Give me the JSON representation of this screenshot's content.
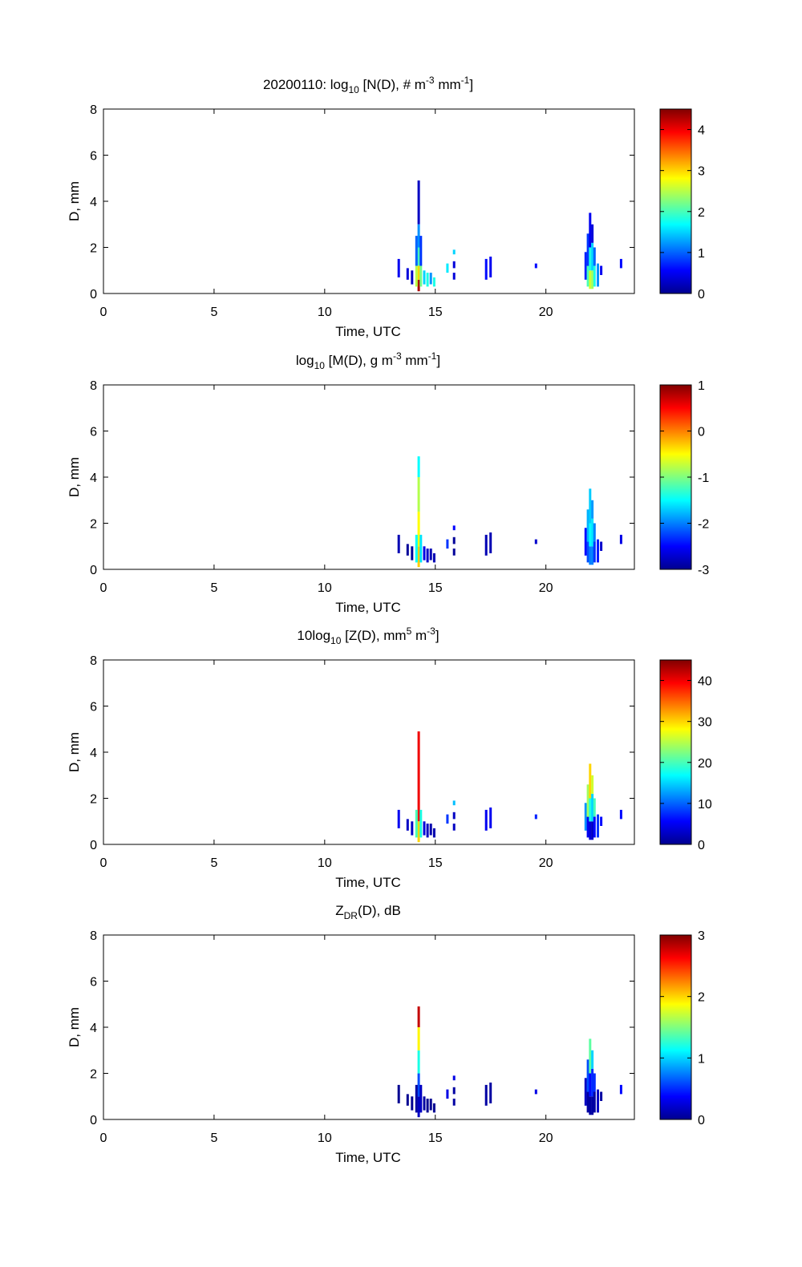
{
  "figure": {
    "date_prefix": "20200110: "
  },
  "colors": {
    "axis": "#000000",
    "background": "#ffffff"
  },
  "chart_data": [
    {
      "type": "heatmap",
      "title_parts": {
        "pre": "log",
        "sub": "10",
        "mid1": " [N(D), # m",
        "sup1": "-3",
        "mid2": " mm",
        "sup2": "-1",
        "post": "]"
      },
      "xlabel": "Time, UTC",
      "ylabel": "D, mm",
      "xlim": [
        0,
        24
      ],
      "ylim": [
        0,
        8
      ],
      "xticks": [
        "0",
        "5",
        "10",
        "15",
        "20"
      ],
      "yticks": [
        "0",
        "2",
        "4",
        "6",
        "8"
      ],
      "colorbar": {
        "range": [
          0,
          4.5
        ],
        "ticks": [
          "0",
          "1",
          "2",
          "3",
          "4"
        ]
      },
      "cells": [
        {
          "t": 14.25,
          "d0": 0.1,
          "d1": 0.6,
          "v": 4.3
        },
        {
          "t": 14.25,
          "d0": 0.6,
          "d1": 1.2,
          "v": 3.0
        },
        {
          "t": 14.25,
          "d0": 1.2,
          "d1": 2.0,
          "v": 2.0
        },
        {
          "t": 14.25,
          "d0": 2.0,
          "d1": 3.0,
          "v": 1.2
        },
        {
          "t": 14.25,
          "d0": 3.0,
          "d1": 4.9,
          "v": 0.3
        },
        {
          "t": 14.15,
          "d0": 0.3,
          "d1": 1.2,
          "v": 2.5
        },
        {
          "t": 14.15,
          "d0": 1.2,
          "d1": 2.5,
          "v": 1.0
        },
        {
          "t": 14.35,
          "d0": 0.3,
          "d1": 1.2,
          "v": 2.2
        },
        {
          "t": 14.35,
          "d0": 1.2,
          "d1": 2.5,
          "v": 0.8
        },
        {
          "t": 13.35,
          "d0": 0.7,
          "d1": 1.5,
          "v": 0.5
        },
        {
          "t": 13.75,
          "d0": 0.6,
          "d1": 1.1,
          "v": 0.4
        },
        {
          "t": 13.95,
          "d0": 0.4,
          "d1": 1.0,
          "v": 0.3
        },
        {
          "t": 14.5,
          "d0": 0.4,
          "d1": 1.0,
          "v": 1.5
        },
        {
          "t": 14.65,
          "d0": 0.3,
          "d1": 0.9,
          "v": 1.8
        },
        {
          "t": 14.8,
          "d0": 0.4,
          "d1": 0.9,
          "v": 1.2
        },
        {
          "t": 14.95,
          "d0": 0.3,
          "d1": 0.7,
          "v": 1.8
        },
        {
          "t": 15.55,
          "d0": 0.9,
          "d1": 1.3,
          "v": 1.6
        },
        {
          "t": 15.85,
          "d0": 0.6,
          "d1": 0.9,
          "v": 0.4
        },
        {
          "t": 15.85,
          "d0": 1.1,
          "d1": 1.4,
          "v": 0.4
        },
        {
          "t": 15.85,
          "d0": 1.7,
          "d1": 1.9,
          "v": 1.5
        },
        {
          "t": 17.3,
          "d0": 0.6,
          "d1": 1.5,
          "v": 0.6
        },
        {
          "t": 17.5,
          "d0": 0.7,
          "d1": 1.6,
          "v": 0.5
        },
        {
          "t": 19.55,
          "d0": 1.1,
          "d1": 1.3,
          "v": 0.6
        },
        {
          "t": 21.8,
          "d0": 0.6,
          "d1": 1.8,
          "v": 0.7
        },
        {
          "t": 21.9,
          "d0": 0.3,
          "d1": 1.2,
          "v": 2.0
        },
        {
          "t": 21.9,
          "d0": 1.2,
          "d1": 2.6,
          "v": 0.8
        },
        {
          "t": 22.0,
          "d0": 0.2,
          "d1": 1.0,
          "v": 2.6
        },
        {
          "t": 22.0,
          "d0": 1.0,
          "d1": 2.0,
          "v": 1.8
        },
        {
          "t": 22.0,
          "d0": 2.0,
          "d1": 3.5,
          "v": 0.5
        },
        {
          "t": 22.1,
          "d0": 0.2,
          "d1": 1.0,
          "v": 2.4
        },
        {
          "t": 22.1,
          "d0": 1.0,
          "d1": 2.2,
          "v": 1.5
        },
        {
          "t": 22.1,
          "d0": 2.2,
          "d1": 3.0,
          "v": 0.4
        },
        {
          "t": 22.2,
          "d0": 0.3,
          "d1": 1.2,
          "v": 1.8
        },
        {
          "t": 22.2,
          "d0": 1.2,
          "d1": 2.0,
          "v": 1.0
        },
        {
          "t": 22.35,
          "d0": 0.3,
          "d1": 1.3,
          "v": 1.2
        },
        {
          "t": 22.5,
          "d0": 0.8,
          "d1": 1.2,
          "v": 0.5
        },
        {
          "t": 23.4,
          "d0": 1.1,
          "d1": 1.5,
          "v": 0.6
        }
      ]
    },
    {
      "type": "heatmap",
      "title_parts": {
        "pre": "log",
        "sub": "10",
        "mid1": " [M(D), g m",
        "sup1": "-3",
        "mid2": " mm",
        "sup2": "-1",
        "post": "]"
      },
      "xlabel": "Time, UTC",
      "ylabel": "D, mm",
      "xlim": [
        0,
        24
      ],
      "ylim": [
        0,
        8
      ],
      "xticks": [
        "0",
        "5",
        "10",
        "15",
        "20"
      ],
      "yticks": [
        "0",
        "2",
        "4",
        "6",
        "8"
      ],
      "colorbar": {
        "range": [
          -3,
          1
        ],
        "ticks": [
          "-3",
          "-2",
          "-1",
          "0",
          "1"
        ]
      },
      "cells": [
        {
          "t": 14.25,
          "d0": 0.1,
          "d1": 1.0,
          "v": -0.3
        },
        {
          "t": 14.25,
          "d0": 1.0,
          "d1": 2.5,
          "v": -0.5
        },
        {
          "t": 14.25,
          "d0": 2.5,
          "d1": 4.0,
          "v": -0.8
        },
        {
          "t": 14.25,
          "d0": 4.0,
          "d1": 4.9,
          "v": -1.5
        },
        {
          "t": 14.15,
          "d0": 0.3,
          "d1": 1.5,
          "v": -1.5
        },
        {
          "t": 14.35,
          "d0": 0.3,
          "d1": 1.5,
          "v": -1.6
        },
        {
          "t": 13.35,
          "d0": 0.7,
          "d1": 1.5,
          "v": -2.8
        },
        {
          "t": 13.75,
          "d0": 0.6,
          "d1": 1.1,
          "v": -2.9
        },
        {
          "t": 13.95,
          "d0": 0.4,
          "d1": 1.0,
          "v": -2.9
        },
        {
          "t": 14.5,
          "d0": 0.4,
          "d1": 1.0,
          "v": -2.6
        },
        {
          "t": 14.65,
          "d0": 0.3,
          "d1": 0.9,
          "v": -2.7
        },
        {
          "t": 14.8,
          "d0": 0.4,
          "d1": 0.9,
          "v": -2.8
        },
        {
          "t": 14.95,
          "d0": 0.3,
          "d1": 0.7,
          "v": -2.8
        },
        {
          "t": 15.55,
          "d0": 0.9,
          "d1": 1.3,
          "v": -2.3
        },
        {
          "t": 15.85,
          "d0": 0.6,
          "d1": 0.9,
          "v": -2.9
        },
        {
          "t": 15.85,
          "d0": 1.1,
          "d1": 1.4,
          "v": -2.9
        },
        {
          "t": 15.85,
          "d0": 1.7,
          "d1": 1.9,
          "v": -2.5
        },
        {
          "t": 17.3,
          "d0": 0.6,
          "d1": 1.5,
          "v": -2.8
        },
        {
          "t": 17.5,
          "d0": 0.7,
          "d1": 1.6,
          "v": -2.8
        },
        {
          "t": 19.55,
          "d0": 1.1,
          "d1": 1.3,
          "v": -2.7
        },
        {
          "t": 21.8,
          "d0": 0.6,
          "d1": 1.8,
          "v": -2.5
        },
        {
          "t": 21.9,
          "d0": 0.3,
          "d1": 1.2,
          "v": -2.2
        },
        {
          "t": 21.9,
          "d0": 1.2,
          "d1": 2.6,
          "v": -1.8
        },
        {
          "t": 22.0,
          "d0": 0.2,
          "d1": 1.0,
          "v": -2.0
        },
        {
          "t": 22.0,
          "d0": 1.0,
          "d1": 2.0,
          "v": -1.5
        },
        {
          "t": 22.0,
          "d0": 2.0,
          "d1": 3.5,
          "v": -1.7
        },
        {
          "t": 22.1,
          "d0": 0.2,
          "d1": 1.0,
          "v": -2.0
        },
        {
          "t": 22.1,
          "d0": 1.0,
          "d1": 2.2,
          "v": -1.6
        },
        {
          "t": 22.1,
          "d0": 2.2,
          "d1": 3.0,
          "v": -1.9
        },
        {
          "t": 22.2,
          "d0": 0.3,
          "d1": 1.2,
          "v": -2.3
        },
        {
          "t": 22.2,
          "d0": 1.2,
          "d1": 2.0,
          "v": -2.0
        },
        {
          "t": 22.35,
          "d0": 0.3,
          "d1": 1.3,
          "v": -2.4
        },
        {
          "t": 22.5,
          "d0": 0.8,
          "d1": 1.2,
          "v": -2.7
        },
        {
          "t": 23.4,
          "d0": 1.1,
          "d1": 1.5,
          "v": -2.6
        }
      ]
    },
    {
      "type": "heatmap",
      "title_parts": {
        "pre": "10log",
        "sub": "10",
        "mid1": " [Z(D),  mm",
        "sup1": "5",
        "mid2": " m",
        "sup2": "-3",
        "post": "]"
      },
      "xlabel": "Time, UTC",
      "ylabel": "D, mm",
      "xlim": [
        0,
        24
      ],
      "ylim": [
        0,
        8
      ],
      "xticks": [
        "0",
        "5",
        "10",
        "15",
        "20"
      ],
      "yticks": [
        "0",
        "2",
        "4",
        "6",
        "8"
      ],
      "colorbar": {
        "range": [
          0,
          45
        ],
        "ticks": [
          "0",
          "10",
          "20",
          "30",
          "40"
        ]
      },
      "cells": [
        {
          "t": 14.25,
          "d0": 0.1,
          "d1": 1.0,
          "v": 30
        },
        {
          "t": 14.25,
          "d0": 1.0,
          "d1": 4.9,
          "v": 40
        },
        {
          "t": 14.15,
          "d0": 0.3,
          "d1": 1.5,
          "v": 20
        },
        {
          "t": 14.35,
          "d0": 0.3,
          "d1": 1.5,
          "v": 18
        },
        {
          "t": 13.35,
          "d0": 0.7,
          "d1": 1.5,
          "v": 5
        },
        {
          "t": 13.75,
          "d0": 0.6,
          "d1": 1.1,
          "v": 3
        },
        {
          "t": 13.95,
          "d0": 0.4,
          "d1": 1.0,
          "v": 3
        },
        {
          "t": 14.5,
          "d0": 0.4,
          "d1": 1.0,
          "v": 4
        },
        {
          "t": 14.65,
          "d0": 0.3,
          "d1": 0.9,
          "v": 3
        },
        {
          "t": 14.8,
          "d0": 0.4,
          "d1": 0.9,
          "v": 2
        },
        {
          "t": 14.95,
          "d0": 0.3,
          "d1": 0.7,
          "v": 2
        },
        {
          "t": 15.55,
          "d0": 0.9,
          "d1": 1.3,
          "v": 8
        },
        {
          "t": 15.85,
          "d0": 0.6,
          "d1": 0.9,
          "v": 3
        },
        {
          "t": 15.85,
          "d0": 1.1,
          "d1": 1.4,
          "v": 3
        },
        {
          "t": 15.85,
          "d0": 1.7,
          "d1": 1.9,
          "v": 14
        },
        {
          "t": 17.3,
          "d0": 0.6,
          "d1": 1.5,
          "v": 5
        },
        {
          "t": 17.5,
          "d0": 0.7,
          "d1": 1.6,
          "v": 5
        },
        {
          "t": 19.55,
          "d0": 1.1,
          "d1": 1.3,
          "v": 7
        },
        {
          "t": 21.8,
          "d0": 0.6,
          "d1": 1.8,
          "v": 12
        },
        {
          "t": 21.9,
          "d0": 0.3,
          "d1": 1.2,
          "v": 5
        },
        {
          "t": 21.9,
          "d0": 1.2,
          "d1": 2.6,
          "v": 24
        },
        {
          "t": 22.0,
          "d0": 0.2,
          "d1": 1.0,
          "v": 4
        },
        {
          "t": 22.0,
          "d0": 1.0,
          "d1": 2.0,
          "v": 18
        },
        {
          "t": 22.0,
          "d0": 2.0,
          "d1": 3.5,
          "v": 30
        },
        {
          "t": 22.1,
          "d0": 0.2,
          "d1": 1.0,
          "v": 3
        },
        {
          "t": 22.1,
          "d0": 1.0,
          "d1": 2.2,
          "v": 15
        },
        {
          "t": 22.1,
          "d0": 2.2,
          "d1": 3.0,
          "v": 26
        },
        {
          "t": 22.2,
          "d0": 0.3,
          "d1": 1.2,
          "v": 6
        },
        {
          "t": 22.2,
          "d0": 1.2,
          "d1": 2.0,
          "v": 20
        },
        {
          "t": 22.35,
          "d0": 0.3,
          "d1": 1.3,
          "v": 8
        },
        {
          "t": 22.5,
          "d0": 0.8,
          "d1": 1.2,
          "v": 6
        },
        {
          "t": 23.4,
          "d0": 1.1,
          "d1": 1.5,
          "v": 6
        }
      ]
    },
    {
      "type": "heatmap",
      "title_parts": {
        "pre": "Z",
        "sub": "DR",
        "mid1": "(D), dB",
        "sup1": "",
        "mid2": "",
        "sup2": "",
        "post": ""
      },
      "xlabel": "Time, UTC",
      "ylabel": "D, mm",
      "xlim": [
        0,
        24
      ],
      "ylim": [
        0,
        8
      ],
      "xticks": [
        "0",
        "5",
        "10",
        "15",
        "20"
      ],
      "yticks": [
        "0",
        "2",
        "4",
        "6",
        "8"
      ],
      "colorbar": {
        "range": [
          0,
          3
        ],
        "ticks": [
          "0",
          "1",
          "2",
          "3"
        ]
      },
      "cells": [
        {
          "t": 14.25,
          "d0": 0.1,
          "d1": 1.0,
          "v": 0.2
        },
        {
          "t": 14.25,
          "d0": 1.0,
          "d1": 2.0,
          "v": 0.6
        },
        {
          "t": 14.25,
          "d0": 2.0,
          "d1": 3.0,
          "v": 1.2
        },
        {
          "t": 14.25,
          "d0": 3.0,
          "d1": 4.0,
          "v": 1.9
        },
        {
          "t": 14.25,
          "d0": 4.0,
          "d1": 4.9,
          "v": 2.8
        },
        {
          "t": 14.15,
          "d0": 0.3,
          "d1": 1.5,
          "v": 0.1
        },
        {
          "t": 14.35,
          "d0": 0.3,
          "d1": 1.5,
          "v": 0.2
        },
        {
          "t": 13.35,
          "d0": 0.7,
          "d1": 1.5,
          "v": 0.05
        },
        {
          "t": 13.75,
          "d0": 0.6,
          "d1": 1.1,
          "v": 0.05
        },
        {
          "t": 13.95,
          "d0": 0.4,
          "d1": 1.0,
          "v": 0.05
        },
        {
          "t": 14.5,
          "d0": 0.4,
          "d1": 1.0,
          "v": 0.1
        },
        {
          "t": 14.65,
          "d0": 0.3,
          "d1": 0.9,
          "v": 0.05
        },
        {
          "t": 14.8,
          "d0": 0.4,
          "d1": 0.9,
          "v": 0.05
        },
        {
          "t": 14.95,
          "d0": 0.3,
          "d1": 0.7,
          "v": 0.05
        },
        {
          "t": 15.55,
          "d0": 0.9,
          "d1": 1.3,
          "v": 0.3
        },
        {
          "t": 15.85,
          "d0": 0.6,
          "d1": 0.9,
          "v": 0.1
        },
        {
          "t": 15.85,
          "d0": 1.1,
          "d1": 1.4,
          "v": 0.1
        },
        {
          "t": 15.85,
          "d0": 1.7,
          "d1": 1.9,
          "v": 0.3
        },
        {
          "t": 17.3,
          "d0": 0.6,
          "d1": 1.5,
          "v": 0.1
        },
        {
          "t": 17.5,
          "d0": 0.7,
          "d1": 1.6,
          "v": 0.1
        },
        {
          "t": 19.55,
          "d0": 1.1,
          "d1": 1.3,
          "v": 0.3
        },
        {
          "t": 21.8,
          "d0": 0.6,
          "d1": 1.8,
          "v": 0.2
        },
        {
          "t": 21.9,
          "d0": 0.3,
          "d1": 1.2,
          "v": 0.1
        },
        {
          "t": 21.9,
          "d0": 1.2,
          "d1": 2.6,
          "v": 0.6
        },
        {
          "t": 22.0,
          "d0": 0.2,
          "d1": 1.0,
          "v": 0.1
        },
        {
          "t": 22.0,
          "d0": 1.0,
          "d1": 2.0,
          "v": 0.4
        },
        {
          "t": 22.0,
          "d0": 2.0,
          "d1": 3.5,
          "v": 1.4
        },
        {
          "t": 22.1,
          "d0": 0.2,
          "d1": 1.0,
          "v": 0.1
        },
        {
          "t": 22.1,
          "d0": 1.0,
          "d1": 2.2,
          "v": 0.5
        },
        {
          "t": 22.1,
          "d0": 2.2,
          "d1": 3.0,
          "v": 1.0
        },
        {
          "t": 22.2,
          "d0": 0.3,
          "d1": 1.2,
          "v": 0.1
        },
        {
          "t": 22.2,
          "d0": 1.2,
          "d1": 2.0,
          "v": 0.5
        },
        {
          "t": 22.35,
          "d0": 0.3,
          "d1": 1.3,
          "v": 0.2
        },
        {
          "t": 22.5,
          "d0": 0.8,
          "d1": 1.2,
          "v": 0.1
        },
        {
          "t": 23.4,
          "d0": 1.1,
          "d1": 1.5,
          "v": 0.4
        }
      ]
    }
  ]
}
